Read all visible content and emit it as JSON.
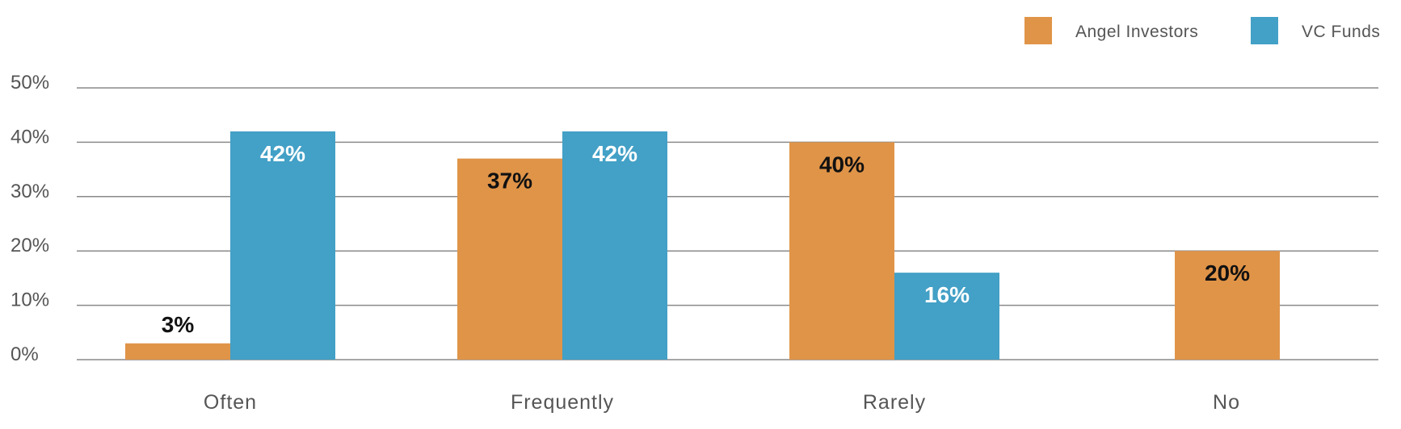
{
  "chart_data": {
    "type": "bar",
    "categories": [
      "Often",
      "Frequently",
      "Rarely",
      "No"
    ],
    "series": [
      {
        "name": "Angel Investors",
        "color": "#E09448",
        "values": [
          3,
          37,
          40,
          20
        ],
        "labels": [
          "3%",
          "37%",
          "40%",
          "20%"
        ]
      },
      {
        "name": "VC Funds",
        "color": "#43A0C6",
        "values": [
          42,
          42,
          16,
          null
        ],
        "labels": [
          "42%",
          "42%",
          "16%",
          null
        ]
      }
    ],
    "y_ticks": [
      "0%",
      "10%",
      "20%",
      "30%",
      "40%",
      "50%"
    ],
    "y_tick_values": [
      0,
      10,
      20,
      30,
      40,
      50
    ],
    "ylim": [
      0,
      50
    ],
    "grid": true,
    "legend_position": "top-right"
  }
}
